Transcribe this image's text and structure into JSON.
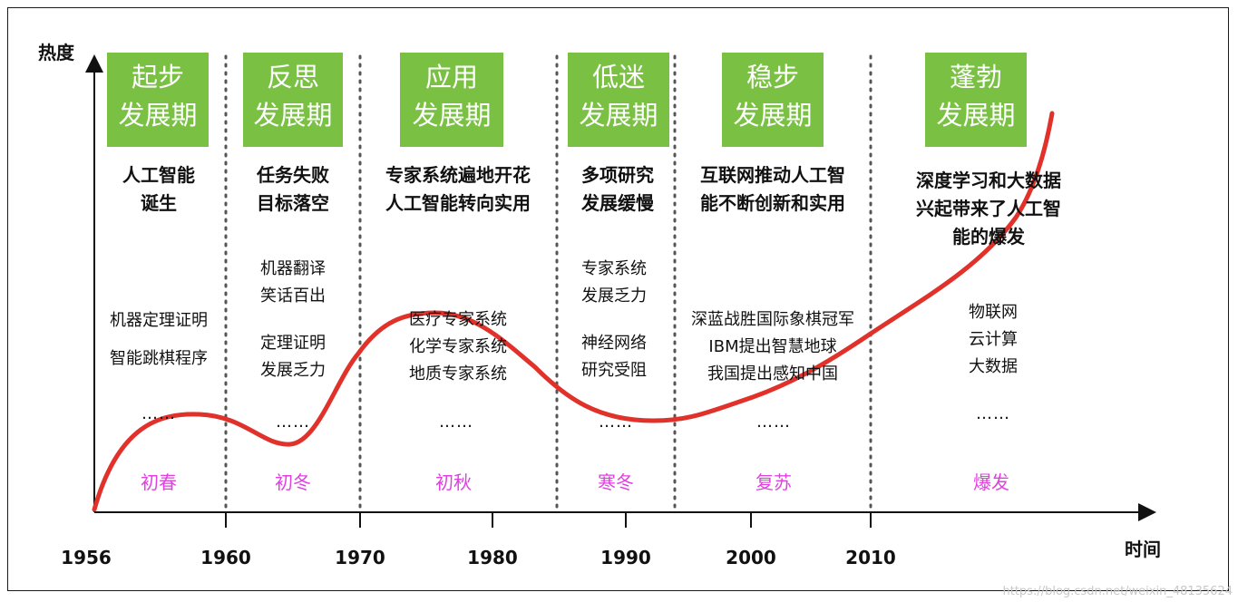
{
  "axes": {
    "y_label": "热度",
    "x_label": "时间"
  },
  "years": [
    "1956",
    "1960",
    "1970",
    "1980",
    "1990",
    "2000",
    "2010"
  ],
  "phases": [
    {
      "name_line1": "起步",
      "name_line2": "发展期",
      "headline": [
        "人工智能",
        "诞生"
      ],
      "events": [
        "机器定理证明",
        "智能跳棋程序"
      ],
      "ellipsis": "……",
      "season": "初春"
    },
    {
      "name_line1": "反思",
      "name_line2": "发展期",
      "headline": [
        "任务失败",
        "目标落空"
      ],
      "events": [
        "机器翻译",
        "笑话百出",
        "",
        "定理证明",
        "发展乏力"
      ],
      "ellipsis": "……",
      "season": "初冬"
    },
    {
      "name_line1": "应用",
      "name_line2": "发展期",
      "headline": [
        "专家系统遍地开花",
        "人工智能转向实用"
      ],
      "events": [
        "医疗专家系统",
        "化学专家系统",
        "地质专家系统"
      ],
      "ellipsis": "……",
      "season": "初秋"
    },
    {
      "name_line1": "低迷",
      "name_line2": "发展期",
      "headline": [
        "多项研究",
        "发展缓慢"
      ],
      "events": [
        "专家系统",
        "发展乏力",
        "",
        "神经网络",
        "研究受阻"
      ],
      "ellipsis": "……",
      "season": "寒冬"
    },
    {
      "name_line1": "稳步",
      "name_line2": "发展期",
      "headline": [
        "互联网推动人工智",
        "能不断创新和实用"
      ],
      "events": [
        "深蓝战胜国际象棋冠军",
        "IBM提出智慧地球",
        "我国提出感知中国"
      ],
      "ellipsis": "……",
      "season": "复苏"
    },
    {
      "name_line1": "蓬勃",
      "name_line2": "发展期",
      "headline": [
        "深度学习和大数据",
        "兴起带来了人工智",
        "能的爆发"
      ],
      "events": [
        "物联网",
        "云计算",
        "大数据"
      ],
      "ellipsis": "……",
      "season": "爆发"
    }
  ],
  "watermark": "https://blog.csdn.net/weixin_48135624",
  "colors": {
    "phase_box": "#7ac143",
    "curve": "#e0322a",
    "season": "#e040e0"
  }
}
